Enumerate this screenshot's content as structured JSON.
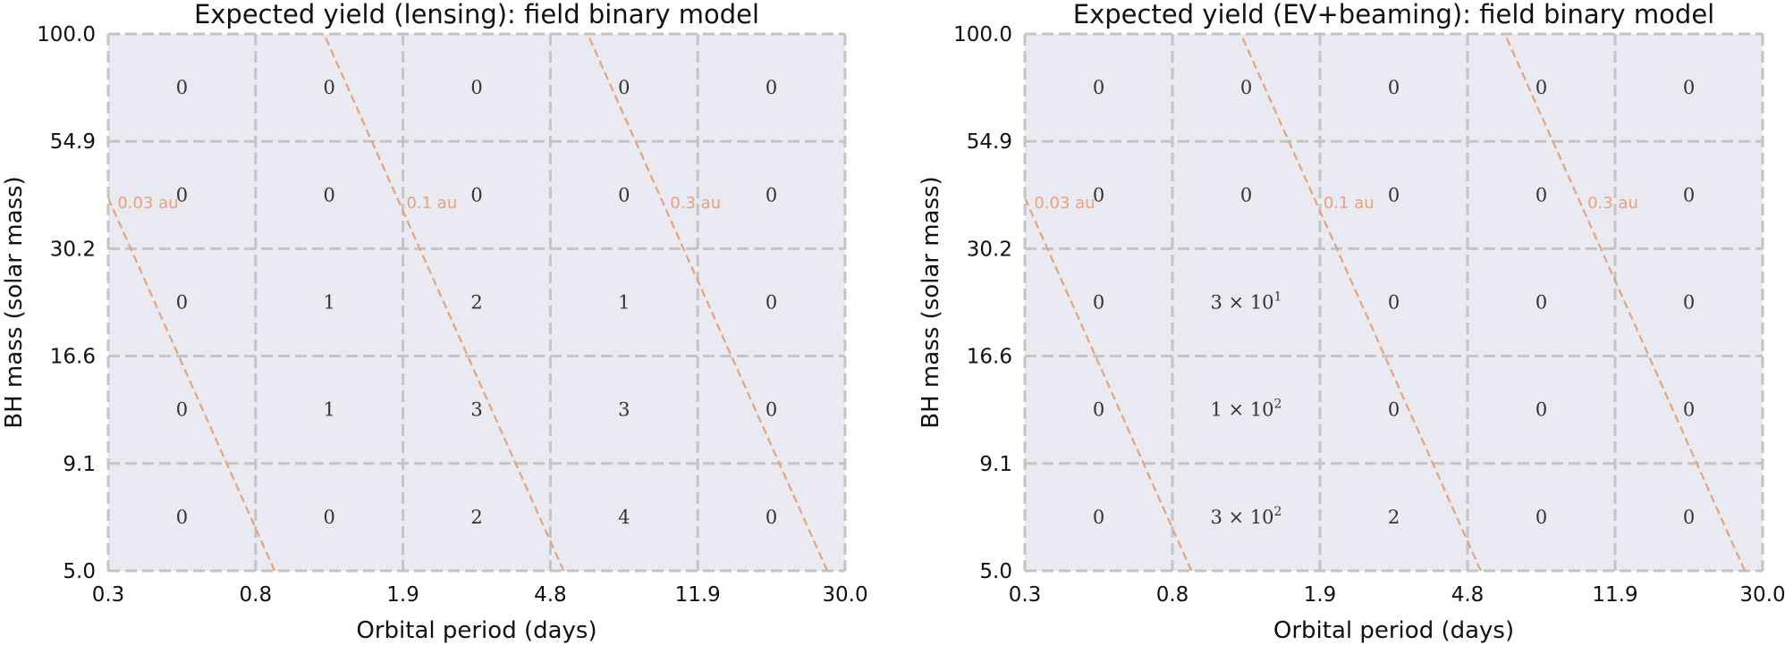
{
  "colors": {
    "plot_background": "#eaeaf2",
    "grid": "#c4c4c4",
    "separation_line": "#e8a27a",
    "text": "#111111"
  },
  "chart_data": [
    {
      "type": "heatmap",
      "title": "Expected yield (lensing): field binary model",
      "xlabel": "Orbital period (days)",
      "ylabel": "BH mass (solar mass)",
      "x_scale": "log",
      "y_scale": "log",
      "x_ticks": [
        "0.3",
        "0.8",
        "1.9",
        "4.8",
        "11.9",
        "30.0"
      ],
      "y_ticks": [
        "5.0",
        "9.1",
        "16.6",
        "30.2",
        "54.9",
        "100.0"
      ],
      "xlim": [
        0.3,
        30.0
      ],
      "ylim": [
        5.0,
        100.0
      ],
      "rows_top_to_bottom": [
        [
          "0",
          "0",
          "0",
          "0",
          "0"
        ],
        [
          "0",
          "0",
          "0",
          "0",
          "0"
        ],
        [
          "0",
          "1",
          "2",
          "1",
          "0"
        ],
        [
          "0",
          "1",
          "3",
          "3",
          "0"
        ],
        [
          "0",
          "0",
          "2",
          "4",
          "0"
        ]
      ],
      "separation_lines": [
        {
          "label": "0.03 au",
          "au": 0.03
        },
        {
          "label": "0.1 au",
          "au": 0.1
        },
        {
          "label": "0.3 au",
          "au": 0.3
        }
      ]
    },
    {
      "type": "heatmap",
      "title": "Expected yield (EV+beaming): field binary model",
      "xlabel": "Orbital period (days)",
      "ylabel": "BH mass (solar mass)",
      "x_scale": "log",
      "y_scale": "log",
      "x_ticks": [
        "0.3",
        "0.8",
        "1.9",
        "4.8",
        "11.9",
        "30.0"
      ],
      "y_ticks": [
        "5.0",
        "9.1",
        "16.6",
        "30.2",
        "54.9",
        "100.0"
      ],
      "xlim": [
        0.3,
        30.0
      ],
      "ylim": [
        5.0,
        100.0
      ],
      "rows_top_to_bottom": [
        [
          "0",
          "0",
          "0",
          "0",
          "0"
        ],
        [
          "0",
          "0",
          "0",
          "0",
          "0"
        ],
        [
          "0",
          "3 × 10^1",
          "0",
          "0",
          "0"
        ],
        [
          "0",
          "1 × 10^2",
          "0",
          "0",
          "0"
        ],
        [
          "0",
          "3 × 10^2",
          "2",
          "0",
          "0"
        ]
      ],
      "separation_lines": [
        {
          "label": "0.03 au",
          "au": 0.03
        },
        {
          "label": "0.1 au",
          "au": 0.1
        },
        {
          "label": "0.3 au",
          "au": 0.3
        }
      ]
    }
  ]
}
